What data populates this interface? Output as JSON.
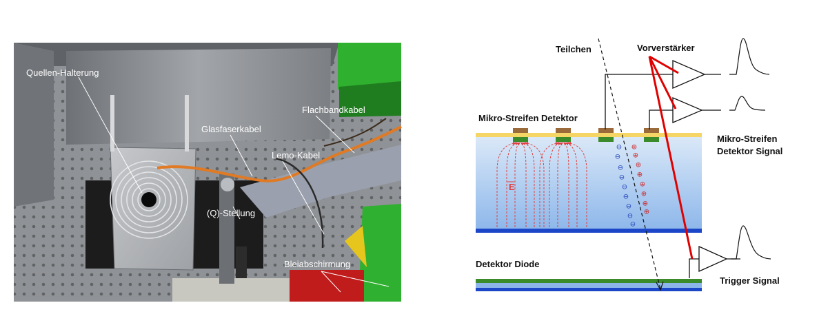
{
  "photo": {
    "labels": {
      "source_holder": "Quellen-Halterung",
      "ribbon_cable": "Flachbandkabel",
      "fiber_cable": "Glasfaserkabel",
      "lemo_cable": "Lemo-Kabel",
      "position": "(Q)-Stellung",
      "lead_shield": "Bleiabschirmung"
    }
  },
  "diagram": {
    "labels": {
      "particle": "Teilchen",
      "preamp": "Vorverstärker",
      "microstrip_detector": "Mikro-Streifen Detektor",
      "microstrip_signal_line1": "Mikro-Streifen",
      "microstrip_signal_line2": "Detektor Signal",
      "detector_diode": "Detektor Diode",
      "trigger_signal": "Trigger Signal",
      "efield": "E"
    },
    "charges": {
      "electron": "⊖",
      "hole": "⊕"
    },
    "colors": {
      "detector_top": "#dbe9f8",
      "detector_bottom": "#8cb6ea",
      "electrode": "#1c46c8",
      "metal_layer": "#f5d565",
      "strip_contact": "#9a6a3a",
      "implant": "#3b8b2a",
      "preamp_wire_highlight": "#e00000",
      "field_line": "#e04040",
      "electron": "#1f3fb8",
      "hole": "#d02020"
    }
  }
}
